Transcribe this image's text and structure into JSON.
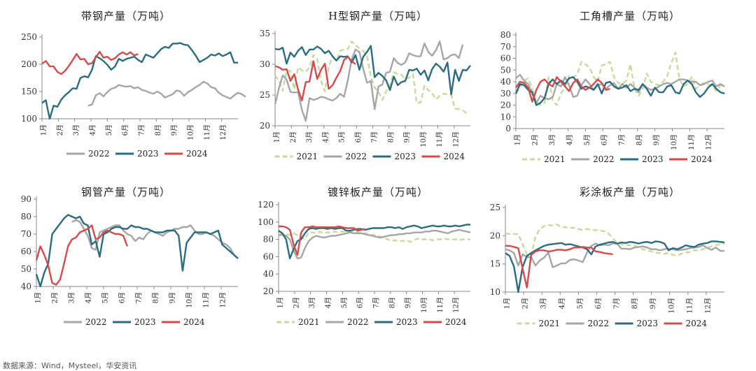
{
  "colors": {
    "2021": "#c6dc9c",
    "2022": "#a6a6a6",
    "2023": "#2b6d80",
    "2024": "#d84a4a"
  },
  "months": [
    "1月",
    "2月",
    "3月",
    "4月",
    "5月",
    "6月",
    "7月",
    "8月",
    "9月",
    "10月",
    "11月",
    "12月"
  ],
  "footer": "数据来源：Wind，Mysteel，华安资讯",
  "chart_data": [
    {
      "type": "line",
      "title": "带钢产量（万吨）",
      "ylim": [
        100,
        250
      ],
      "yticks": [
        100,
        150,
        200,
        250
      ],
      "x_axis": "months",
      "xtick_labels": [
        "1月",
        "2月",
        "3月",
        "4月",
        "5月",
        "6月",
        "7月",
        "8月",
        "9月",
        "10月",
        "11月",
        "12月"
      ],
      "legend": "bottom",
      "series": [
        {
          "name": "2022",
          "values": [
            null,
            null,
            null,
            null,
            null,
            null,
            null,
            null,
            null,
            null,
            null,
            null,
            null,
            null,
            null,
            null,
            null,
            null,
            null,
            null,
            null,
            null,
            null,
            null,
            null,
            null,
            null,
            null,
            null,
            null,
            null,
            null,
            null,
            null,
            null,
            null,
            null,
            null,
            null,
            null,
            null,
            null,
            null,
            null,
            null,
            null,
            null,
            null,
            null,
            null
          ]
        },
        {
          "name": "2023",
          "values": []
        },
        {
          "name": "2024",
          "values": []
        }
      ]
    }
  ]
}
